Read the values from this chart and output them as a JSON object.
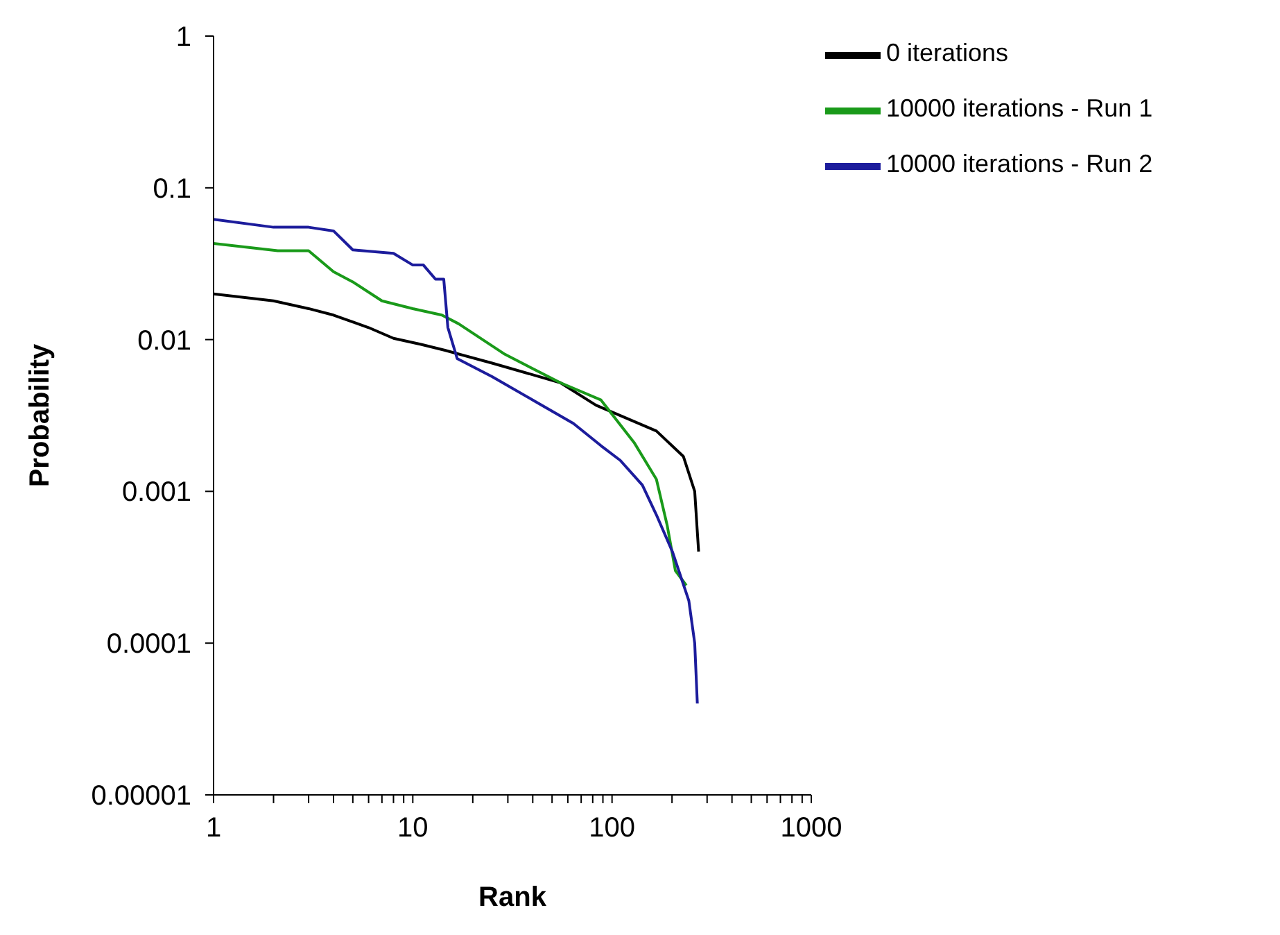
{
  "chart_data": {
    "type": "line",
    "xlabel": "Rank",
    "ylabel": "Probability",
    "log": "xy",
    "grid": false,
    "legend": "top right",
    "marker": "none",
    "line_style": "solid",
    "xlim": [
      1,
      1000
    ],
    "xticks": [
      1,
      {
        "value": 2,
        "label": null
      },
      {
        "value": 3,
        "label": null
      },
      {
        "value": 4,
        "label": null
      },
      {
        "value": 5,
        "label": null
      },
      {
        "value": 6,
        "label": null
      },
      {
        "value": 7,
        "label": null
      },
      {
        "value": 8,
        "label": null
      },
      {
        "value": 9,
        "label": null
      },
      10,
      {
        "value": 20,
        "label": null
      },
      {
        "value": 30,
        "label": null
      },
      {
        "value": 40,
        "label": null
      },
      {
        "value": 50,
        "label": null
      },
      {
        "value": 60,
        "label": null
      },
      {
        "value": 70,
        "label": null
      },
      {
        "value": 80,
        "label": null
      },
      {
        "value": 90,
        "label": null
      },
      100,
      {
        "value": 200,
        "label": null
      },
      {
        "value": 300,
        "label": null
      },
      {
        "value": 400,
        "label": null
      },
      {
        "value": 500,
        "label": null
      },
      {
        "value": 600,
        "label": null
      },
      {
        "value": 700,
        "label": null
      },
      {
        "value": 800,
        "label": null
      },
      {
        "value": 900,
        "label": null
      },
      1000
    ],
    "ylim": [
      1e-05,
      1
    ],
    "yticks": [
      {
        "value": 1e-05,
        "label": "0.00001"
      },
      {
        "value": 0.0001,
        "label": "0.0001"
      },
      {
        "value": 0.001,
        "label": "0.001"
      },
      {
        "value": 0.01,
        "label": "0.01"
      },
      {
        "value": 0.1,
        "label": "0.1"
      },
      {
        "value": 1,
        "label": "1"
      }
    ],
    "series": [
      {
        "name": "0 iterations",
        "color": "#000000",
        "x": [
          1,
          2,
          3,
          4,
          6,
          8,
          11,
          14.5,
          25,
          55,
          83,
          167,
          228,
          260,
          272
        ],
        "values": [
          0.02,
          0.018,
          0.016,
          0.0145,
          0.012,
          0.0102,
          0.0093,
          0.0085,
          0.007,
          0.0052,
          0.0037,
          0.0025,
          0.0017,
          0.001,
          0.0004
        ]
      },
      {
        "name": "10000 iterations - Run 1",
        "color": "#1a9a1a",
        "x": [
          1,
          2.1,
          3,
          4,
          5,
          7,
          10,
          14,
          17,
          29,
          55,
          88,
          129,
          167,
          189,
          208,
          236
        ],
        "values": [
          0.043,
          0.0385,
          0.0385,
          0.028,
          0.024,
          0.018,
          0.016,
          0.0145,
          0.0127,
          0.008,
          0.0052,
          0.004,
          0.0021,
          0.0012,
          0.0006,
          0.0003,
          0.00024
        ]
      },
      {
        "name": "10000 iterations - Run 2",
        "color": "#1c1c9c",
        "x": [
          1,
          2,
          3,
          4,
          5,
          8,
          10,
          11.3,
          13,
          14.3,
          15,
          16.7,
          25,
          40,
          64,
          88,
          110,
          142,
          167,
          201,
          243,
          260,
          268
        ],
        "values": [
          0.062,
          0.055,
          0.055,
          0.052,
          0.039,
          0.037,
          0.031,
          0.031,
          0.025,
          0.025,
          0.012,
          0.0075,
          0.0057,
          0.004,
          0.0028,
          0.002,
          0.0016,
          0.0011,
          0.0007,
          0.0004,
          0.00019,
          0.0001,
          4e-05
        ]
      }
    ]
  }
}
